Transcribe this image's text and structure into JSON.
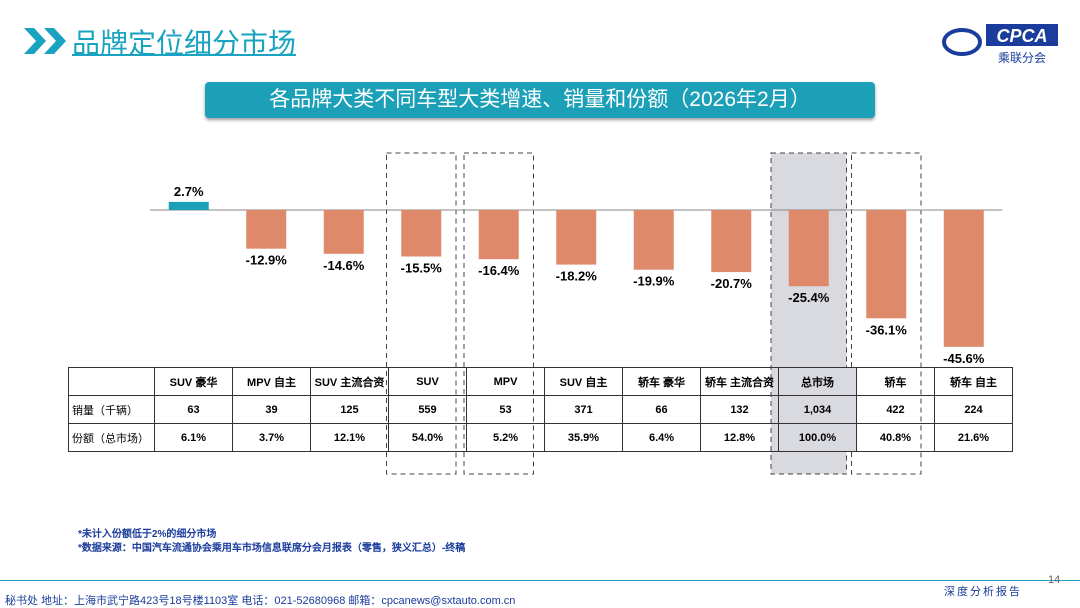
{
  "header": {
    "title": "品牌定位细分市场",
    "logo_text": "CPCA",
    "logo_subtext": "乘联分会",
    "subtitle": "各品牌大类不同车型大类增速、销量和份额（2026年2月）"
  },
  "chart_data": {
    "type": "bar",
    "title": "各品牌大类不同车型大类增速、销量和份额（2026年2月）",
    "categories": [
      "SUV 豪华",
      "MPV 自主",
      "SUV 主流合资",
      "SUV",
      "MPV",
      "SUV 自主",
      "轿车 豪华",
      "轿车 主流合资",
      "总市场",
      "轿车",
      "轿车 自主"
    ],
    "values": [
      2.7,
      -12.9,
      -14.6,
      -15.5,
      -16.4,
      -18.2,
      -19.9,
      -20.7,
      -25.4,
      -36.1,
      -45.6
    ],
    "value_labels": [
      "2.7%",
      "-12.9%",
      "-14.6%",
      "-15.5%",
      "-16.4%",
      "-18.2%",
      "-19.9%",
      "-20.7%",
      "-25.4%",
      "-36.1%",
      "-45.6%"
    ],
    "colors": {
      "positive": "#1ba0b8",
      "negative": "#de8a6a",
      "highlight": "#d9d9e0"
    },
    "highlighted_dashed": [
      "SUV",
      "MPV",
      "轿车"
    ],
    "highlighted_filled": [
      "总市场"
    ]
  },
  "table": {
    "row_labels": [
      "销量（千辆）",
      "份额（总市场）"
    ],
    "sales": [
      "63",
      "39",
      "125",
      "559",
      "53",
      "371",
      "66",
      "132",
      "1,034",
      "422",
      "224"
    ],
    "share": [
      "6.1%",
      "3.7%",
      "12.1%",
      "54.0%",
      "5.2%",
      "35.9%",
      "6.4%",
      "12.8%",
      "100.0%",
      "40.8%",
      "21.6%"
    ]
  },
  "notes": [
    "*未计入份额低于2%的细分市场",
    "*数据来源：中国汽车流通协会乘用车市场信息联席分会月报表（零售，狭义汇总）-终稿"
  ],
  "footer": {
    "text": "秘书处   地址：上海市武宁路423号18号楼1103室  电话：021-52680968   邮箱：cpcanews@sxtauto.com.cn",
    "report": "深度分析报告",
    "page": "14"
  }
}
